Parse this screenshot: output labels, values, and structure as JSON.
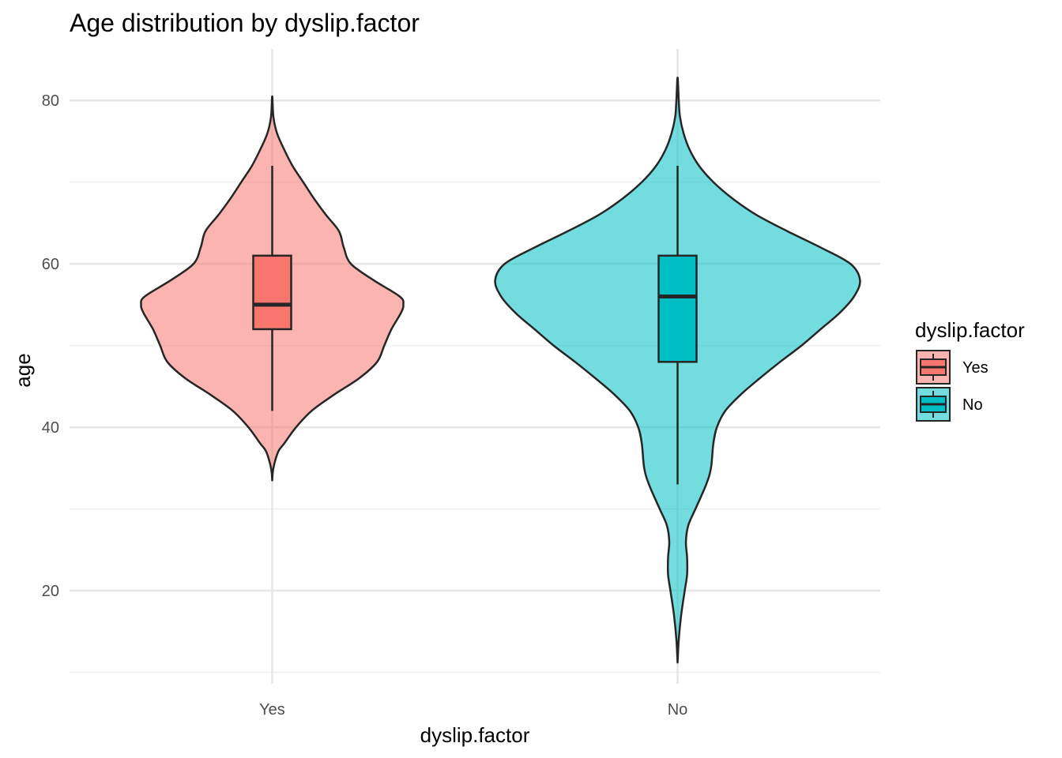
{
  "chart_data": {
    "type": "violin",
    "title": "Age distribution by dyslip.factor",
    "xlabel": "dyslip.factor",
    "ylabel": "age",
    "categories": [
      "Yes",
      "No"
    ],
    "ylim": [
      8.6,
      86.3
    ],
    "yticks": [
      20,
      40,
      60,
      80
    ],
    "grid": true,
    "legend": {
      "title": "dyslip.factor",
      "position": "right",
      "items": [
        "Yes",
        "No"
      ]
    },
    "colors": {
      "Yes": "#F8766D",
      "No": "#00BFC4",
      "outline": "#262626",
      "grid_major": "#e6e6e6",
      "grid_minor": "#f0f0f0"
    },
    "series": [
      {
        "name": "Yes",
        "boxplot": {
          "whisker_low": 42,
          "q1": 52,
          "median": 55,
          "q3": 61,
          "whisker_high": 72
        },
        "violin": {
          "ymin": 33.5,
          "ymax": 80.5,
          "profile": [
            [
              33.5,
              0.0
            ],
            [
              35,
              0.01
            ],
            [
              37,
              0.05
            ],
            [
              38,
              0.1
            ],
            [
              40,
              0.2
            ],
            [
              42,
              0.33
            ],
            [
              44,
              0.52
            ],
            [
              46,
              0.73
            ],
            [
              48,
              0.88
            ],
            [
              50,
              0.94
            ],
            [
              52,
              1.0
            ],
            [
              54,
              1.08
            ],
            [
              55,
              1.1
            ],
            [
              56,
              1.07
            ],
            [
              58,
              0.85
            ],
            [
              60,
              0.66
            ],
            [
              62,
              0.6
            ],
            [
              64,
              0.56
            ],
            [
              66,
              0.45
            ],
            [
              68,
              0.35
            ],
            [
              70,
              0.26
            ],
            [
              72,
              0.17
            ],
            [
              74,
              0.1
            ],
            [
              76,
              0.04
            ],
            [
              78,
              0.01
            ],
            [
              80.5,
              0.0
            ]
          ]
        }
      },
      {
        "name": "No",
        "boxplot": {
          "whisker_low": 33,
          "q1": 48,
          "median": 56,
          "q3": 61,
          "whisker_high": 72
        },
        "violin": {
          "ymin": 11.2,
          "ymax": 82.8,
          "profile": [
            [
              11.2,
              0.0
            ],
            [
              14,
              0.01
            ],
            [
              17,
              0.03
            ],
            [
              20,
              0.06
            ],
            [
              22,
              0.08
            ],
            [
              24,
              0.08
            ],
            [
              26,
              0.07
            ],
            [
              28,
              0.09
            ],
            [
              30,
              0.15
            ],
            [
              33,
              0.24
            ],
            [
              35,
              0.28
            ],
            [
              38,
              0.3
            ],
            [
              40,
              0.33
            ],
            [
              42,
              0.4
            ],
            [
              44,
              0.53
            ],
            [
              46,
              0.69
            ],
            [
              48,
              0.86
            ],
            [
              50,
              1.04
            ],
            [
              52,
              1.2
            ],
            [
              54,
              1.36
            ],
            [
              56,
              1.48
            ],
            [
              58,
              1.53
            ],
            [
              60,
              1.45
            ],
            [
              62,
              1.2
            ],
            [
              64,
              0.92
            ],
            [
              66,
              0.66
            ],
            [
              68,
              0.46
            ],
            [
              70,
              0.3
            ],
            [
              72,
              0.18
            ],
            [
              74,
              0.1
            ],
            [
              76,
              0.05
            ],
            [
              78,
              0.02
            ],
            [
              80,
              0.01
            ],
            [
              82.8,
              0.0
            ]
          ]
        }
      }
    ]
  }
}
